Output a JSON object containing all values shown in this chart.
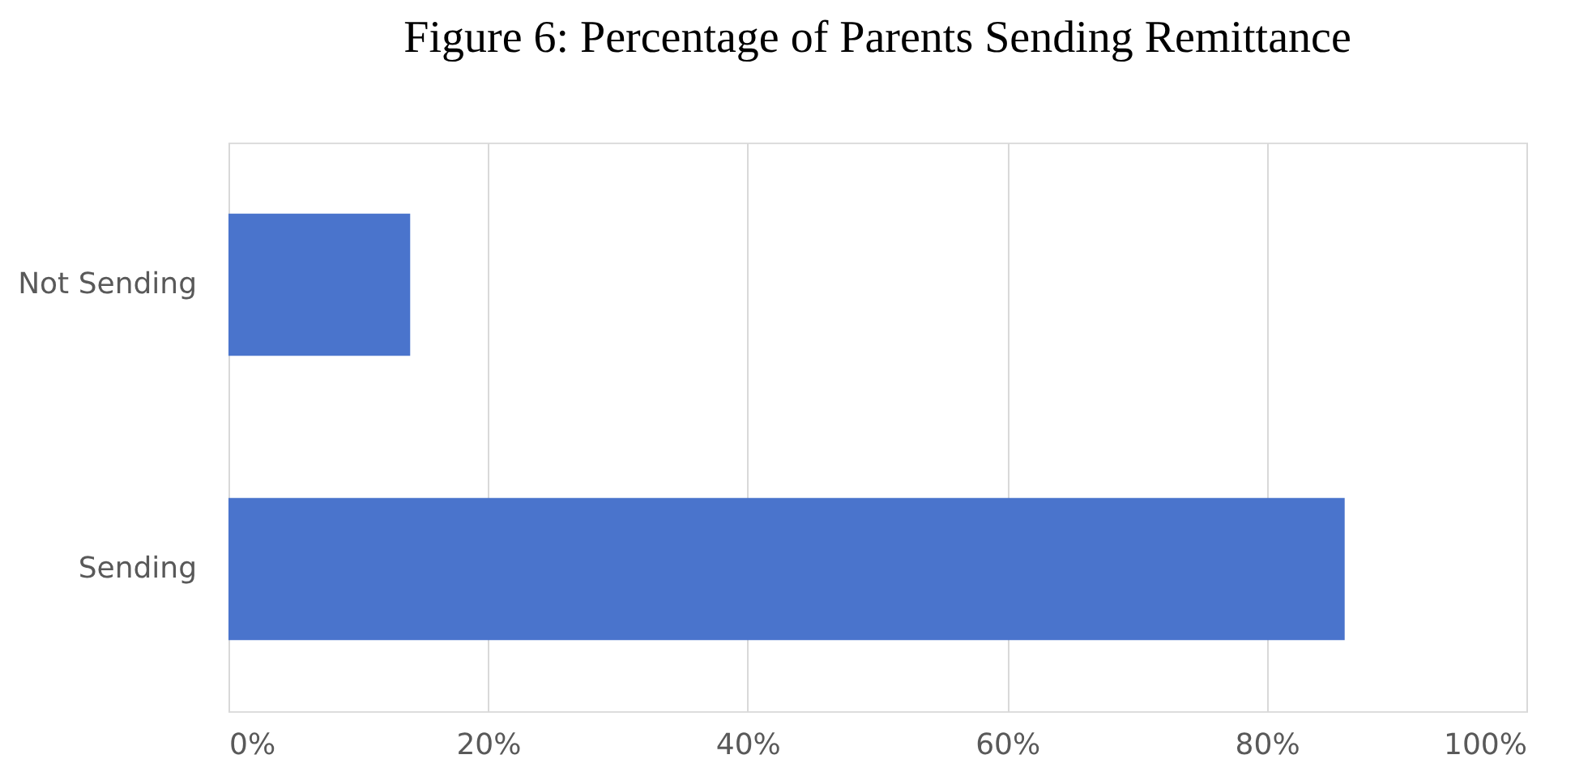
{
  "chart_data": {
    "type": "bar",
    "orientation": "horizontal",
    "title": "Figure 6: Percentage of Parents Sending Remittance",
    "categories": [
      "Not Sending",
      "Sending"
    ],
    "values": [
      14,
      86
    ],
    "color": "#4a74cc",
    "xlim": [
      0,
      100
    ],
    "xticks": [
      {
        "value": 0,
        "label": "0%"
      },
      {
        "value": 20,
        "label": "20%"
      },
      {
        "value": 40,
        "label": "40%"
      },
      {
        "value": 60,
        "label": "60%"
      },
      {
        "value": 80,
        "label": "80%"
      },
      {
        "value": 100,
        "label": "100%"
      }
    ],
    "grid": "x"
  }
}
